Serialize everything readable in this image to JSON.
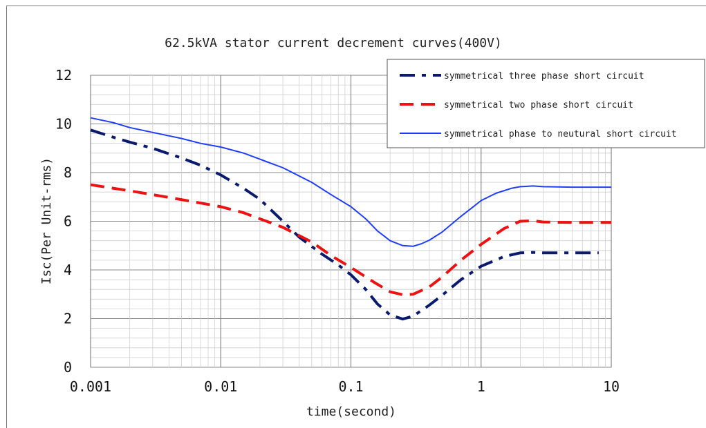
{
  "chart_data": {
    "type": "line",
    "title": "62.5kVA stator current decrement curves(400V)",
    "xlabel": "time(second)",
    "ylabel": "Isc(Per Unit-rms)",
    "x_scale": "log",
    "xlim": [
      0.001,
      10
    ],
    "ylim": [
      0,
      12
    ],
    "x_ticks": [
      "0.001",
      "0.01",
      "0.1",
      "1",
      "10"
    ],
    "y_ticks": [
      "0",
      "2",
      "4",
      "6",
      "8",
      "10",
      "12"
    ],
    "grid": true,
    "legend_position": "top-right",
    "series": [
      {
        "name": "symmetrical three phase short circuit",
        "color": "#0a1a6e",
        "style": "dash-dot",
        "points": [
          [
            0.001,
            9.75
          ],
          [
            0.0015,
            9.45
          ],
          [
            0.002,
            9.25
          ],
          [
            0.003,
            9.0
          ],
          [
            0.005,
            8.6
          ],
          [
            0.007,
            8.3
          ],
          [
            0.01,
            7.9
          ],
          [
            0.015,
            7.35
          ],
          [
            0.02,
            6.9
          ],
          [
            0.03,
            6.0
          ],
          [
            0.04,
            5.35
          ],
          [
            0.06,
            4.65
          ],
          [
            0.08,
            4.2
          ],
          [
            0.1,
            3.8
          ],
          [
            0.13,
            3.2
          ],
          [
            0.16,
            2.6
          ],
          [
            0.2,
            2.15
          ],
          [
            0.25,
            1.98
          ],
          [
            0.3,
            2.1
          ],
          [
            0.4,
            2.55
          ],
          [
            0.5,
            2.95
          ],
          [
            0.7,
            3.6
          ],
          [
            1.0,
            4.15
          ],
          [
            1.5,
            4.55
          ],
          [
            2.0,
            4.7
          ],
          [
            2.5,
            4.72
          ],
          [
            3.0,
            4.7
          ],
          [
            5.0,
            4.7
          ],
          [
            8.0,
            4.7
          ]
        ]
      },
      {
        "name": "symmetrical two phase short circuit",
        "color": "#ee1111",
        "style": "dash",
        "points": [
          [
            0.001,
            7.5
          ],
          [
            0.002,
            7.25
          ],
          [
            0.004,
            6.98
          ],
          [
            0.007,
            6.75
          ],
          [
            0.01,
            6.6
          ],
          [
            0.015,
            6.35
          ],
          [
            0.02,
            6.1
          ],
          [
            0.03,
            5.75
          ],
          [
            0.05,
            5.15
          ],
          [
            0.07,
            4.6
          ],
          [
            0.1,
            4.1
          ],
          [
            0.15,
            3.5
          ],
          [
            0.2,
            3.1
          ],
          [
            0.25,
            2.98
          ],
          [
            0.3,
            3.0
          ],
          [
            0.4,
            3.3
          ],
          [
            0.5,
            3.7
          ],
          [
            0.7,
            4.4
          ],
          [
            1.0,
            5.05
          ],
          [
            1.5,
            5.7
          ],
          [
            2.0,
            6.0
          ],
          [
            2.5,
            6.02
          ],
          [
            3.0,
            5.97
          ],
          [
            5.0,
            5.95
          ],
          [
            10,
            5.95
          ]
        ]
      },
      {
        "name": "symmetrical phase to neutural short circuit",
        "color": "#1e3cff",
        "style": "solid",
        "points": [
          [
            0.001,
            10.25
          ],
          [
            0.0015,
            10.05
          ],
          [
            0.002,
            9.85
          ],
          [
            0.003,
            9.65
          ],
          [
            0.005,
            9.4
          ],
          [
            0.007,
            9.2
          ],
          [
            0.01,
            9.05
          ],
          [
            0.015,
            8.8
          ],
          [
            0.02,
            8.55
          ],
          [
            0.03,
            8.2
          ],
          [
            0.05,
            7.6
          ],
          [
            0.07,
            7.1
          ],
          [
            0.1,
            6.6
          ],
          [
            0.13,
            6.1
          ],
          [
            0.16,
            5.6
          ],
          [
            0.2,
            5.2
          ],
          [
            0.25,
            5.0
          ],
          [
            0.3,
            4.97
          ],
          [
            0.35,
            5.08
          ],
          [
            0.4,
            5.22
          ],
          [
            0.5,
            5.55
          ],
          [
            0.7,
            6.2
          ],
          [
            0.85,
            6.55
          ],
          [
            1.0,
            6.85
          ],
          [
            1.3,
            7.15
          ],
          [
            1.7,
            7.35
          ],
          [
            2.0,
            7.42
          ],
          [
            2.5,
            7.45
          ],
          [
            3.0,
            7.42
          ],
          [
            5.0,
            7.4
          ],
          [
            10,
            7.4
          ]
        ]
      }
    ]
  }
}
